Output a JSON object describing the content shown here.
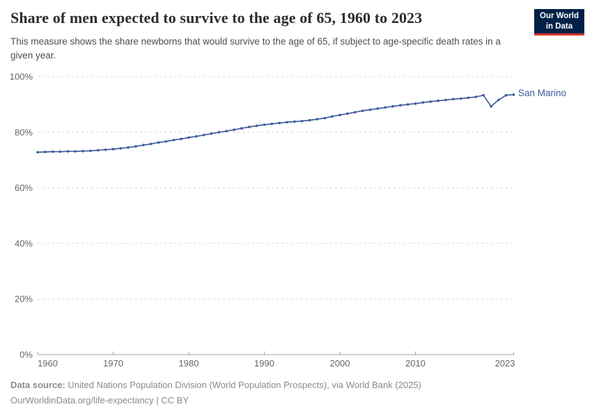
{
  "header": {
    "title": "Share of men expected to survive to the age of 65, 1960 to 2023",
    "subtitle": "This measure shows the share newborns that would survive to the age of 65, if subject to age-specific death rates in a given year.",
    "logo": {
      "line1": "Our World",
      "line2": "in Data",
      "bg_color": "#002147",
      "accent_color": "#dc352c"
    }
  },
  "chart_data": {
    "type": "line",
    "title": "Share of men expected to survive to the age of 65, 1960 to 2023",
    "x": [
      1960,
      1961,
      1962,
      1963,
      1964,
      1965,
      1966,
      1967,
      1968,
      1969,
      1970,
      1971,
      1972,
      1973,
      1974,
      1975,
      1976,
      1977,
      1978,
      1979,
      1980,
      1981,
      1982,
      1983,
      1984,
      1985,
      1986,
      1987,
      1988,
      1989,
      1990,
      1991,
      1992,
      1993,
      1994,
      1995,
      1996,
      1997,
      1998,
      1999,
      2000,
      2001,
      2002,
      2003,
      2004,
      2005,
      2006,
      2007,
      2008,
      2009,
      2010,
      2011,
      2012,
      2013,
      2014,
      2015,
      2016,
      2017,
      2018,
      2019,
      2020,
      2021,
      2022,
      2023
    ],
    "series": [
      {
        "name": "San Marino",
        "color": "#3e5c99",
        "values": [
          72.8,
          72.9,
          73.0,
          73.0,
          73.1,
          73.1,
          73.2,
          73.3,
          73.5,
          73.7,
          73.9,
          74.2,
          74.5,
          74.9,
          75.4,
          75.8,
          76.3,
          76.7,
          77.2,
          77.6,
          78.1,
          78.5,
          79.0,
          79.5,
          80.0,
          80.4,
          80.9,
          81.4,
          81.9,
          82.3,
          82.7,
          83.0,
          83.3,
          83.6,
          83.8,
          84.0,
          84.3,
          84.7,
          85.1,
          85.7,
          86.2,
          86.7,
          87.2,
          87.7,
          88.1,
          88.5,
          88.9,
          89.3,
          89.7,
          90.0,
          90.3,
          90.7,
          91.0,
          91.3,
          91.6,
          91.9,
          92.1,
          92.4,
          92.7,
          93.3,
          89.3,
          91.6,
          93.3,
          93.5
        ]
      }
    ],
    "xlabel": "",
    "ylabel": "",
    "xlim": [
      1960,
      2023
    ],
    "ylim": [
      0,
      100
    ],
    "x_ticks": [
      1960,
      1970,
      1980,
      1990,
      2000,
      2010,
      2023
    ],
    "y_ticks": [
      0,
      20,
      40,
      60,
      80,
      100
    ],
    "y_suffix": "%",
    "grid": "horizontal-dashed",
    "legend": "end-of-line-label",
    "grid_color": "#d9d9d9",
    "axis_color": "#a3a3a3"
  },
  "footer": {
    "datasource_label": "Data source:",
    "datasource_text": "United Nations Population Division (World Population Prospects), via World Bank (2025)",
    "link_line": "OurWorldinData.org/life-expectancy | CC BY"
  }
}
